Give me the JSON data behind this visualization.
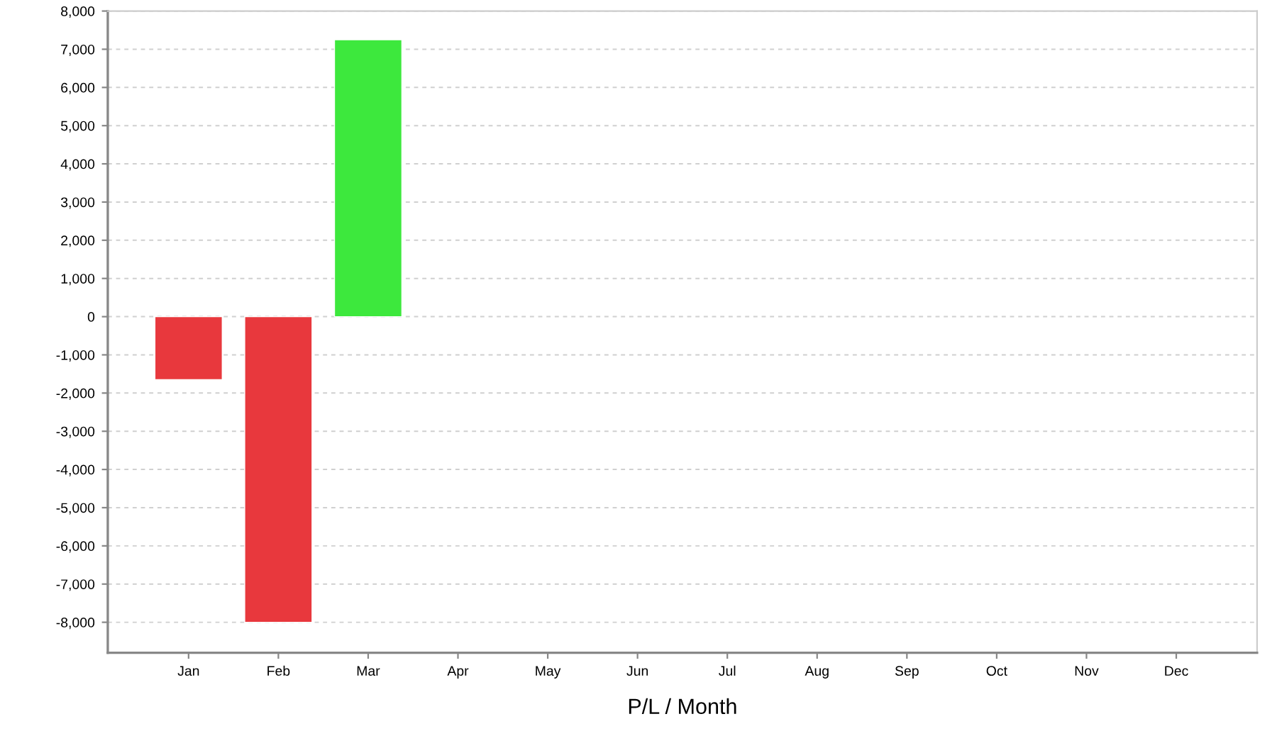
{
  "chart_data": {
    "type": "bar",
    "xlabel": "P/L / Month",
    "categories": [
      "Jan",
      "Feb",
      "Mar",
      "Apr",
      "May",
      "Jun",
      "Jul",
      "Aug",
      "Sep",
      "Oct",
      "Nov",
      "Dec"
    ],
    "values": [
      -1650,
      -8000,
      7250,
      null,
      null,
      null,
      null,
      null,
      null,
      null,
      null,
      null
    ],
    "colors": [
      "#e8383d",
      "#e8383d",
      "#3de83d",
      null,
      null,
      null,
      null,
      null,
      null,
      null,
      null,
      null
    ],
    "ylim": [
      -8800,
      8000
    ],
    "yticks": [
      {
        "value": -8000,
        "label": "-8,000"
      },
      {
        "value": -7000,
        "label": "-7,000"
      },
      {
        "value": -6000,
        "label": "-6,000"
      },
      {
        "value": -5000,
        "label": "-5,000"
      },
      {
        "value": -4000,
        "label": "-4,000"
      },
      {
        "value": -3000,
        "label": "-3,000"
      },
      {
        "value": -2000,
        "label": "-2,000"
      },
      {
        "value": -1000,
        "label": "-1,000"
      },
      0,
      {
        "value": 1000,
        "label": "1,000"
      },
      {
        "value": 2000,
        "label": "2,000"
      },
      {
        "value": 3000,
        "label": "3,000"
      },
      {
        "value": 4000,
        "label": "4,000"
      },
      {
        "value": 5000,
        "label": "5,000"
      },
      {
        "value": 6000,
        "label": "6,000"
      },
      {
        "value": 7000,
        "label": "7,000"
      },
      {
        "value": 8000,
        "label": "8,000"
      }
    ],
    "grid": "y"
  }
}
